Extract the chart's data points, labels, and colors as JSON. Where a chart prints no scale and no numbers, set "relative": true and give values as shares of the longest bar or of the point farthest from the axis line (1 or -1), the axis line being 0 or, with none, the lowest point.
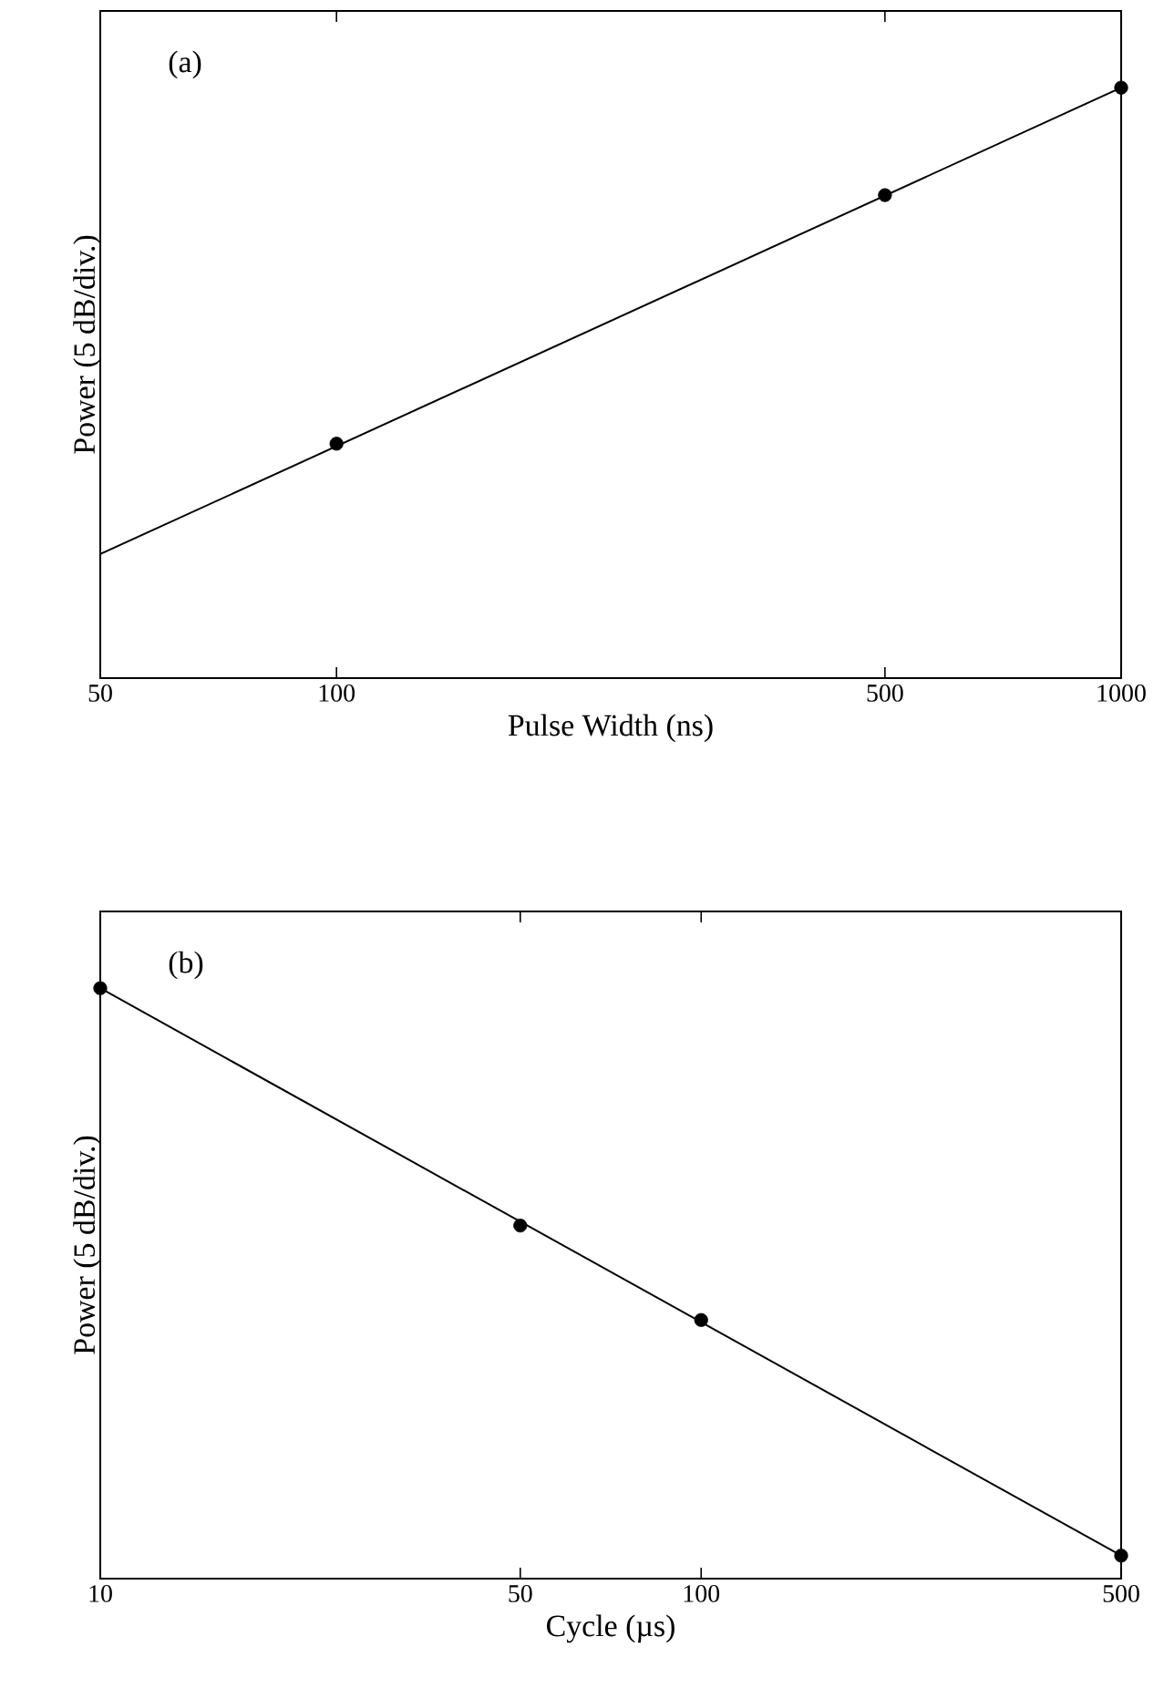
{
  "chart_data": [
    {
      "type": "scatter",
      "xlabel": "Pulse Width (ns)",
      "ylabel": "Power (5 dB/div.)",
      "annotations": [
        "(a)"
      ],
      "log": "x",
      "relative": true,
      "xlim": [
        50,
        1000
      ],
      "xticks": [
        50,
        100,
        500,
        1000
      ],
      "marker": "circle",
      "series": [
        {
          "color": "#000000",
          "x": [
            100,
            500,
            1000
          ],
          "values": [
            0.397,
            0.818,
            1
          ]
        },
        {
          "type": "line",
          "color": "#000000",
          "marker": "none",
          "x": [
            50,
            1000
          ],
          "values": [
            0.21,
            1
          ]
        }
      ]
    },
    {
      "type": "scatter",
      "xlabel": "Cycle (µs)",
      "ylabel": "Power (5 dB/div.)",
      "annotations": [
        "(b)"
      ],
      "log": "x",
      "relative": true,
      "xlim": [
        10,
        500
      ],
      "xticks": [
        10,
        50,
        100,
        500
      ],
      "marker": "circle",
      "series": [
        {
          "color": "#000000",
          "x": [
            10,
            50,
            100,
            500
          ],
          "values": [
            1,
            0.598,
            0.438,
            0.039
          ]
        },
        {
          "type": "line",
          "color": "#000000",
          "marker": "none",
          "x": [
            10,
            500
          ],
          "values": [
            1,
            0.039
          ]
        }
      ]
    }
  ]
}
